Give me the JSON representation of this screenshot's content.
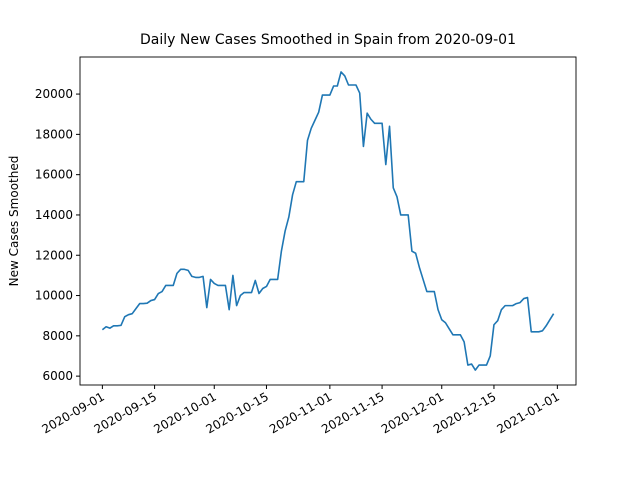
{
  "chart_data": {
    "type": "line",
    "title": "Daily New Cases Smoothed in Spain from 2020-09-01",
    "y_label": "New Cases Smoothed",
    "color": "#1f77b4",
    "x": [
      "2020-09-01",
      "2020-09-02",
      "2020-09-03",
      "2020-09-04",
      "2020-09-05",
      "2020-09-06",
      "2020-09-07",
      "2020-09-08",
      "2020-09-09",
      "2020-09-10",
      "2020-09-11",
      "2020-09-12",
      "2020-09-13",
      "2020-09-14",
      "2020-09-15",
      "2020-09-16",
      "2020-09-17",
      "2020-09-18",
      "2020-09-19",
      "2020-09-20",
      "2020-09-21",
      "2020-09-22",
      "2020-09-23",
      "2020-09-24",
      "2020-09-25",
      "2020-09-26",
      "2020-09-27",
      "2020-09-28",
      "2020-09-29",
      "2020-09-30",
      "2020-10-01",
      "2020-10-02",
      "2020-10-03",
      "2020-10-04",
      "2020-10-05",
      "2020-10-06",
      "2020-10-07",
      "2020-10-08",
      "2020-10-09",
      "2020-10-10",
      "2020-10-11",
      "2020-10-12",
      "2020-10-13",
      "2020-10-14",
      "2020-10-15",
      "2020-10-16",
      "2020-10-17",
      "2020-10-18",
      "2020-10-19",
      "2020-10-20",
      "2020-10-21",
      "2020-10-22",
      "2020-10-23",
      "2020-10-24",
      "2020-10-25",
      "2020-10-26",
      "2020-10-27",
      "2020-10-28",
      "2020-10-29",
      "2020-10-30",
      "2020-10-31",
      "2020-11-01",
      "2020-11-02",
      "2020-11-03",
      "2020-11-04",
      "2020-11-05",
      "2020-11-06",
      "2020-11-07",
      "2020-11-08",
      "2020-11-09",
      "2020-11-10",
      "2020-11-11",
      "2020-11-12",
      "2020-11-13",
      "2020-11-14",
      "2020-11-15",
      "2020-11-16",
      "2020-11-17",
      "2020-11-18",
      "2020-11-19",
      "2020-11-20",
      "2020-11-21",
      "2020-11-22",
      "2020-11-23",
      "2020-11-24",
      "2020-11-25",
      "2020-11-26",
      "2020-11-27",
      "2020-11-28",
      "2020-11-29",
      "2020-11-30",
      "2020-12-01",
      "2020-12-02",
      "2020-12-03",
      "2020-12-04",
      "2020-12-05",
      "2020-12-06",
      "2020-12-07",
      "2020-12-08",
      "2020-12-09",
      "2020-12-10",
      "2020-12-11",
      "2020-12-12",
      "2020-12-13",
      "2020-12-14",
      "2020-12-15",
      "2020-12-16",
      "2020-12-17",
      "2020-12-18",
      "2020-12-19",
      "2020-12-20",
      "2020-12-21",
      "2020-12-22",
      "2020-12-23",
      "2020-12-24",
      "2020-12-25",
      "2020-12-26",
      "2020-12-27",
      "2020-12-28",
      "2020-12-29",
      "2020-12-30",
      "2020-12-31"
    ],
    "values": [
      8300,
      8450,
      8380,
      8500,
      8500,
      8520,
      8950,
      9050,
      9100,
      9350,
      9600,
      9600,
      9620,
      9750,
      9800,
      10100,
      10200,
      10500,
      10500,
      10500,
      11100,
      11300,
      11300,
      11250,
      10950,
      10900,
      10900,
      10950,
      9400,
      10800,
      10600,
      10500,
      10500,
      10500,
      9300,
      11000,
      9500,
      10000,
      10150,
      10150,
      10150,
      10750,
      10100,
      10350,
      10450,
      10800,
      10800,
      10800,
      12200,
      13200,
      13900,
      15000,
      15650,
      15650,
      15650,
      17700,
      18300,
      18700,
      19100,
      19950,
      19950,
      19950,
      20400,
      20400,
      21100,
      20900,
      20450,
      20450,
      20450,
      20050,
      17400,
      19050,
      18750,
      18550,
      18550,
      18550,
      16500,
      18400,
      15350,
      14900,
      14000,
      14000,
      14000,
      12200,
      12100,
      11400,
      10800,
      10200,
      10200,
      10200,
      9300,
      8800,
      8650,
      8350,
      8050,
      8050,
      8050,
      7700,
      6550,
      6600,
      6300,
      6550,
      6550,
      6550,
      7000,
      8550,
      8750,
      9300,
      9500,
      9500,
      9500,
      9600,
      9650,
      9850,
      9900,
      8200,
      8200,
      8200,
      8250,
      8500,
      8800,
      9100
    ],
    "xlim": [
      "2020-08-26",
      "2021-01-06"
    ],
    "xticks": [
      "2020-09-01",
      "2020-09-15",
      "2020-10-01",
      "2020-10-15",
      "2020-11-01",
      "2020-11-15",
      "2020-12-01",
      "2020-12-15",
      "2021-01-01"
    ],
    "ylim": [
      5560,
      21840
    ],
    "yticks": [
      6000,
      8000,
      10000,
      12000,
      14000,
      16000,
      18000,
      20000
    ]
  }
}
